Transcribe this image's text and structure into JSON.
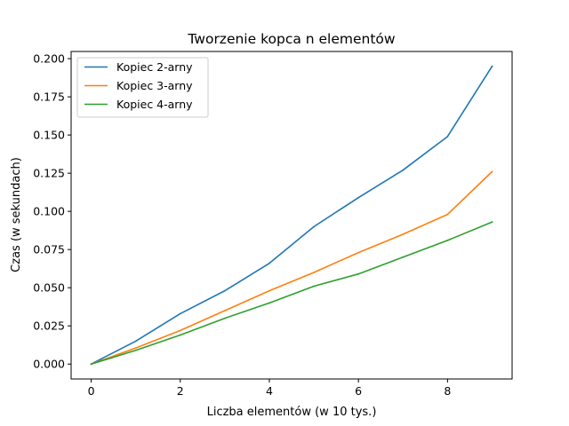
{
  "chart_data": {
    "type": "line",
    "title": "Tworzenie kopca n elementów",
    "xlabel": "Liczba elementów (w 10 tys.)",
    "ylabel": "Czas (w sekundach)",
    "x": [
      0,
      1,
      2,
      3,
      4,
      5,
      6,
      7,
      8,
      9
    ],
    "xlim": [
      -0.45,
      9.45
    ],
    "ylim": [
      -0.00975,
      0.2047
    ],
    "xticks": [
      0,
      2,
      4,
      6,
      8
    ],
    "xtick_labels": [
      "0",
      "2",
      "4",
      "6",
      "8"
    ],
    "yticks": [
      0.0,
      0.025,
      0.05,
      0.075,
      0.1,
      0.125,
      0.15,
      0.175,
      0.2
    ],
    "ytick_labels": [
      "0.000",
      "0.025",
      "0.050",
      "0.075",
      "0.100",
      "0.125",
      "0.150",
      "0.175",
      "0.200"
    ],
    "grid": false,
    "legend_position": "top-left",
    "series": [
      {
        "name": "Kopiec 2-arny",
        "color": "#1f77b4",
        "values": [
          0.0,
          0.015,
          0.033,
          0.048,
          0.066,
          0.09,
          0.109,
          0.127,
          0.149,
          0.195
        ]
      },
      {
        "name": "Kopiec 3-arny",
        "color": "#ff7f0e",
        "values": [
          0.0,
          0.0105,
          0.022,
          0.035,
          0.048,
          0.06,
          0.073,
          0.085,
          0.098,
          0.126
        ]
      },
      {
        "name": "Kopiec 4-arny",
        "color": "#2ca02c",
        "values": [
          0.0,
          0.009,
          0.019,
          0.03,
          0.04,
          0.051,
          0.059,
          0.07,
          0.081,
          0.093
        ]
      }
    ]
  }
}
